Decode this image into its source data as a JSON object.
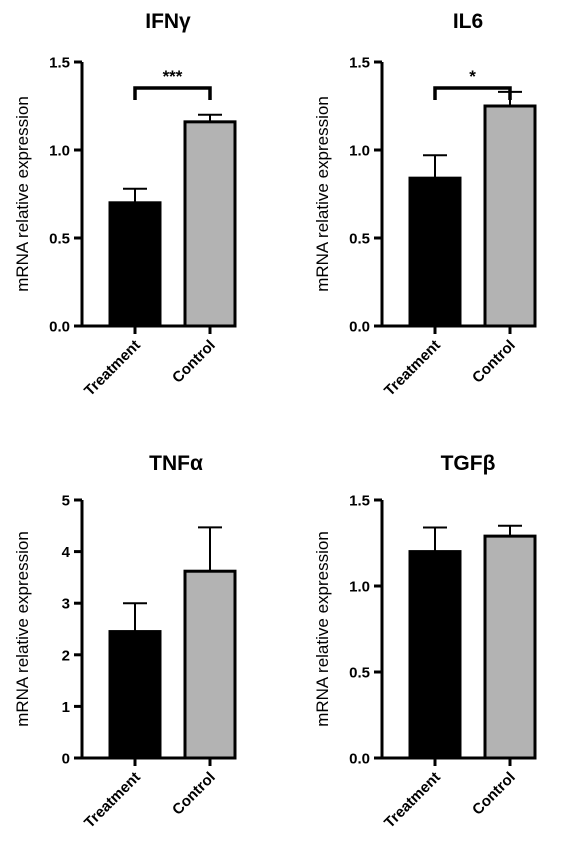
{
  "chart_data": [
    {
      "type": "bar",
      "title": "IFNγ",
      "ylabel": "mRNA relative expression",
      "categories": [
        "Treatment",
        "Control"
      ],
      "values": [
        0.7,
        1.16
      ],
      "errors": [
        0.08,
        0.04
      ],
      "colors": [
        "#000000",
        "#b3b3b3"
      ],
      "ylim": [
        0,
        1.5
      ],
      "yticks": [
        "0.0",
        "0.5",
        "1.0",
        "1.5"
      ],
      "significance": "***"
    },
    {
      "type": "bar",
      "title": "IL6",
      "ylabel": "mRNA relative expression",
      "categories": [
        "Treatment",
        "Control"
      ],
      "values": [
        0.84,
        1.25
      ],
      "errors": [
        0.13,
        0.08
      ],
      "colors": [
        "#000000",
        "#b3b3b3"
      ],
      "ylim": [
        0,
        1.5
      ],
      "yticks": [
        "0.0",
        "0.5",
        "1.0",
        "1.5"
      ],
      "significance": "*"
    },
    {
      "type": "bar",
      "title": "TNFα",
      "ylabel": "mRNA relative expression",
      "categories": [
        "Treatment",
        "Control"
      ],
      "values": [
        2.45,
        3.62
      ],
      "errors": [
        0.55,
        0.85
      ],
      "colors": [
        "#000000",
        "#b3b3b3"
      ],
      "ylim": [
        0,
        5
      ],
      "yticks": [
        "0",
        "1",
        "2",
        "3",
        "4",
        "5"
      ],
      "significance": ""
    },
    {
      "type": "bar",
      "title": "TGFβ",
      "ylabel": "mRNA relative expression",
      "categories": [
        "Treatment",
        "Control"
      ],
      "values": [
        1.2,
        1.29
      ],
      "errors": [
        0.14,
        0.06
      ],
      "colors": [
        "#000000",
        "#b3b3b3"
      ],
      "ylim": [
        0,
        1.5
      ],
      "yticks": [
        "0.0",
        "0.5",
        "1.0",
        "1.5"
      ],
      "significance": ""
    }
  ]
}
